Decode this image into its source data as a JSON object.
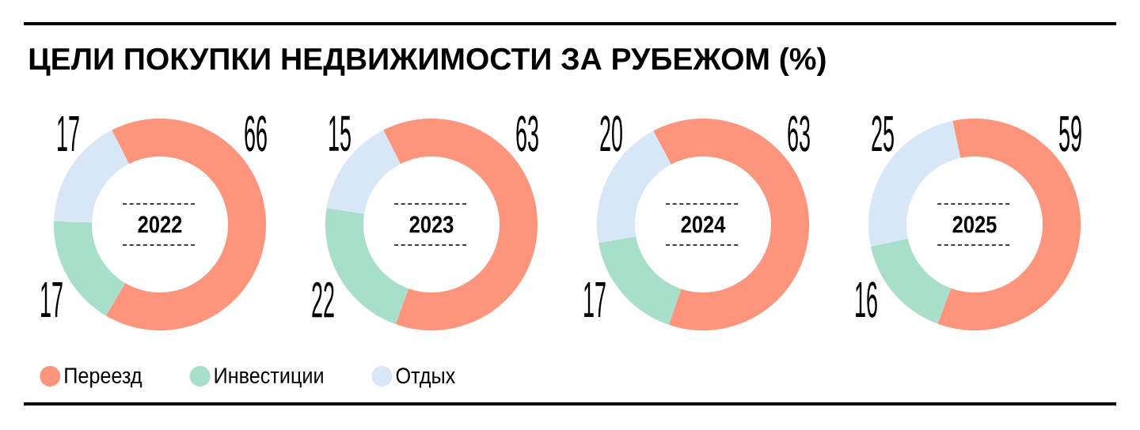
{
  "chart_data": [
    {
      "type": "other",
      "title": "ЦЕЛИ ПОКУПКИ НЕДВИЖИМОСТИ ЗА РУБЕЖОМ (%)"
    },
    {
      "type": "donut",
      "title": "2022",
      "categories": [
        "Переезд",
        "Инвестиции",
        "Отдых"
      ],
      "values": [
        66,
        17,
        17
      ],
      "colors": [
        "#fd957d",
        "#a7dfca",
        "#d7e7f8"
      ],
      "data_labels": true,
      "legend": "bottom"
    },
    {
      "type": "donut",
      "title": "2023",
      "categories": [
        null,
        null,
        null
      ],
      "values": [
        63,
        22,
        15
      ],
      "colors": [
        "#fd957d",
        "#a7dfca",
        "#d7e7f8"
      ],
      "data_labels": true
    },
    {
      "type": "donut",
      "title": "2024",
      "categories": [
        null,
        null,
        null
      ],
      "values": [
        63,
        17,
        20
      ],
      "colors": [
        "#fd957d",
        "#a7dfca",
        "#d7e7f8"
      ],
      "data_labels": true
    },
    {
      "type": "donut",
      "title": "2025",
      "categories": [
        null,
        null,
        null
      ],
      "values": [
        59,
        16,
        25
      ],
      "colors": [
        "#fd957d",
        "#a7dfca",
        "#d7e7f8"
      ],
      "data_labels": true
    }
  ]
}
